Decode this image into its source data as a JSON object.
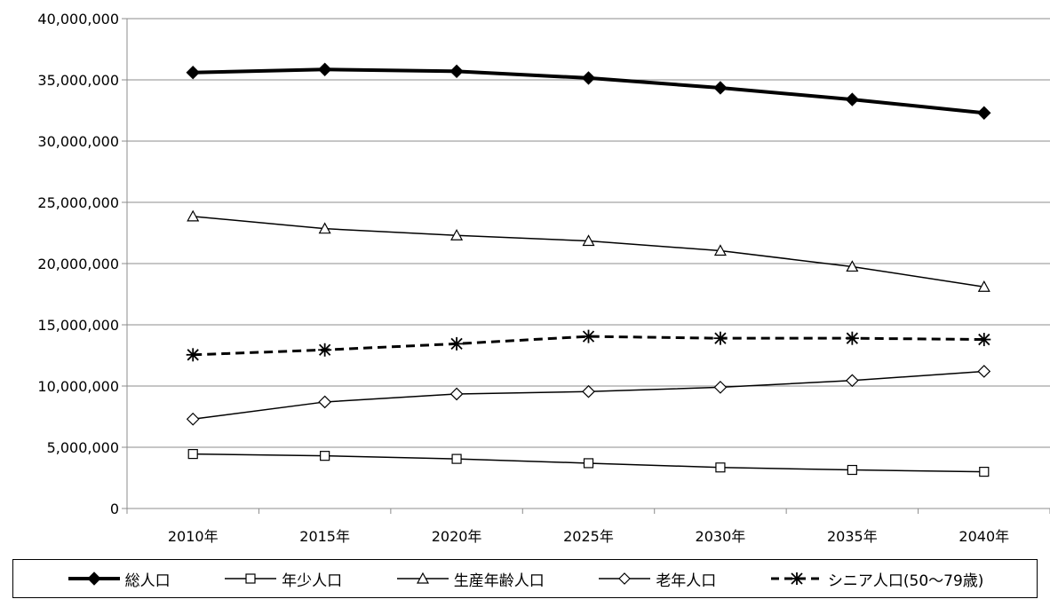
{
  "chart_data": {
    "type": "line",
    "categories": [
      "2010年",
      "2015年",
      "2020年",
      "2025年",
      "2030年",
      "2035年",
      "2040年"
    ],
    "ylim": [
      0,
      40000000
    ],
    "yticks": [
      "0",
      "5,000,000",
      "10,000,000",
      "15,000,000",
      "20,000,000",
      "25,000,000",
      "30,000,000",
      "35,000,000",
      "40,000,000"
    ],
    "grid": true,
    "legend_position": "bottom",
    "series": [
      {
        "name": "総人口",
        "marker": "diamond-filled",
        "line": "thick",
        "values": [
          35600000,
          35850000,
          35700000,
          35150000,
          34350000,
          33400000,
          32300000
        ]
      },
      {
        "name": "年少人口",
        "marker": "square-open",
        "line": "thin",
        "values": [
          4450000,
          4300000,
          4050000,
          3700000,
          3350000,
          3150000,
          3000000
        ]
      },
      {
        "name": "生産年齢人口",
        "marker": "triangle-open",
        "line": "thin",
        "values": [
          23850000,
          22850000,
          22300000,
          21850000,
          21050000,
          19750000,
          18100000
        ]
      },
      {
        "name": "老年人口",
        "marker": "diamond-open",
        "line": "thin",
        "values": [
          7300000,
          8700000,
          9350000,
          9550000,
          9900000,
          10450000,
          11200000
        ]
      },
      {
        "name": "シニア人口(50～79歳)",
        "marker": "star",
        "line": "dashed",
        "values": [
          12550000,
          12950000,
          13450000,
          14050000,
          13900000,
          13900000,
          13800000
        ]
      }
    ]
  }
}
